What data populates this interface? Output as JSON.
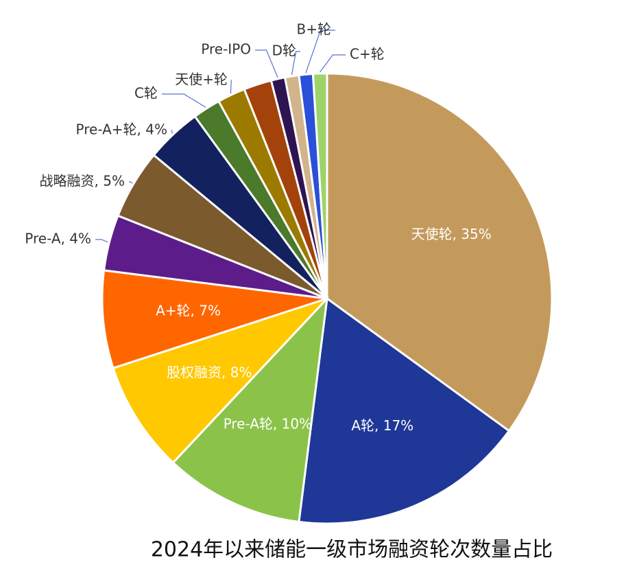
{
  "chart_data": {
    "type": "pie",
    "title": "2024年以来储能一级市场融资轮次数量占比",
    "categories": [
      "天使轮, 35%",
      "A轮, 17%",
      "Pre-A轮, 10%",
      "股权融资, 8%",
      "A+轮, 7%",
      "Pre-A, 4%",
      "战略融资, 5%",
      "Pre-A+轮, 4%",
      "C轮",
      "天使+轮",
      null,
      "Pre-IPO",
      "D轮",
      "B+轮",
      "C+轮"
    ],
    "values": [
      35,
      17,
      10,
      8,
      7,
      4,
      5,
      4,
      2,
      2,
      2,
      1,
      1,
      1,
      1
    ],
    "colors": [
      "#c49a5c",
      "#1f3796",
      "#8bc34a",
      "#ffc800",
      "#ff6600",
      "#5c1d8a",
      "#7b5a2e",
      "#14215f",
      "#4b7a2a",
      "#9c7a00",
      "#a3420a",
      "#2e1450",
      "#d2b48c",
      "#2a4fd8",
      "#9ed36b"
    ]
  }
}
